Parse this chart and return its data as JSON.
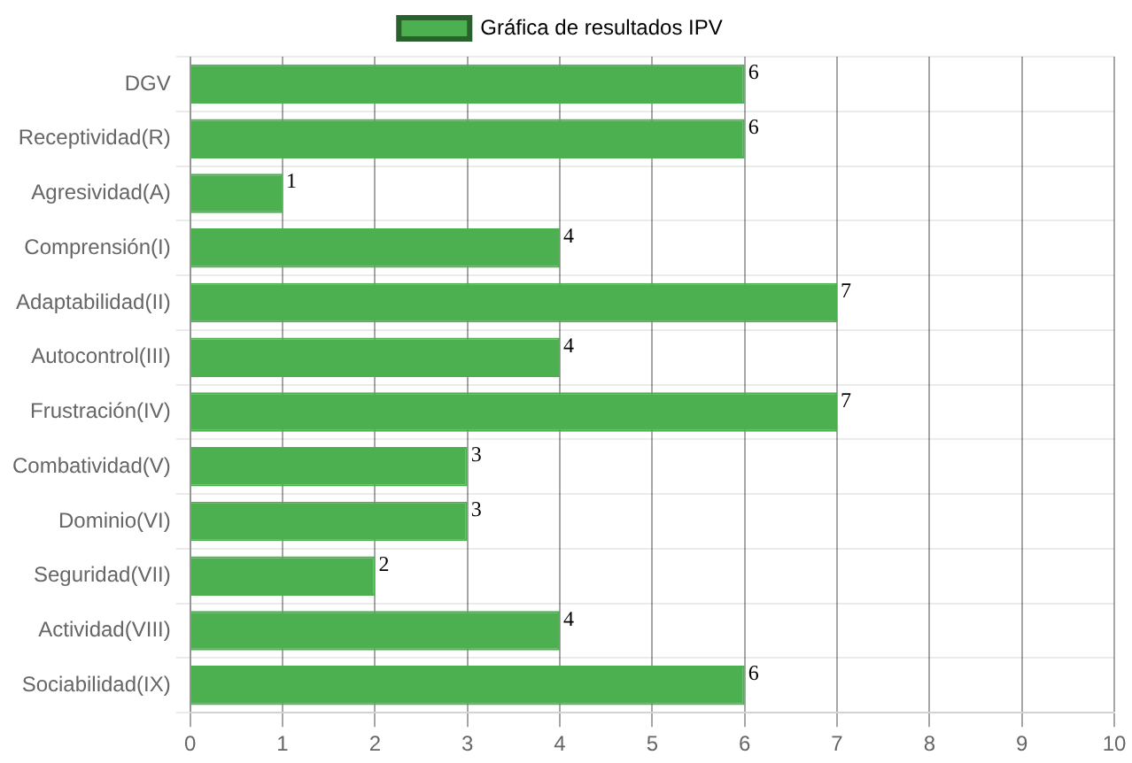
{
  "chart_data": {
    "type": "bar",
    "orientation": "horizontal",
    "categories": [
      "DGV",
      "Receptividad(R)",
      "Agresividad(A)",
      "Comprensión(I)",
      "Adaptabilidad(II)",
      "Autocontrol(III)",
      "Frustración(IV)",
      "Combatividad(V)",
      "Dominio(VI)",
      "Seguridad(VII)",
      "Actividad(VIII)",
      "Sociabilidad(IX)"
    ],
    "series": [
      {
        "name": "Gráfica de resultados IPV",
        "color": "#4caf50",
        "values": [
          6,
          6,
          1,
          4,
          7,
          4,
          7,
          3,
          3,
          2,
          4,
          6
        ]
      }
    ],
    "xlim": [
      0,
      10
    ],
    "xticks": [
      0,
      1,
      2,
      3,
      4,
      5,
      6,
      7,
      8,
      9,
      10
    ],
    "grid": true,
    "legend": "top",
    "data_labels": true
  }
}
